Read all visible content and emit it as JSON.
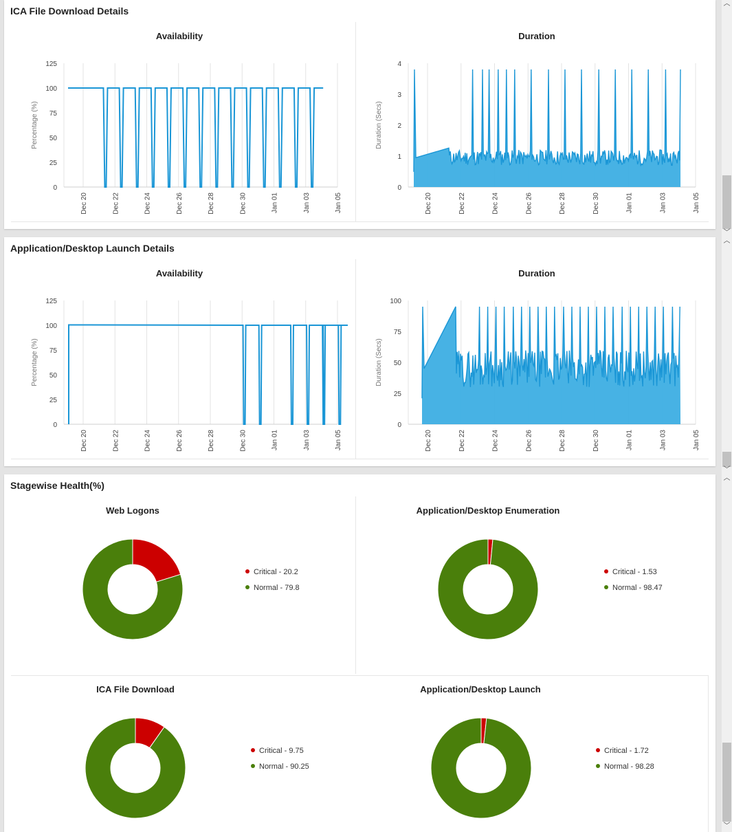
{
  "sections": {
    "ica": {
      "title": "ICA File Download Details"
    },
    "launch": {
      "title": "Application/Desktop Launch Details"
    },
    "stagewise": {
      "title": "Stagewise Health(%)"
    }
  },
  "colors": {
    "line": "#1a96d6",
    "area": "#3daee3",
    "critical": "#cc0000",
    "normal": "#4a7f0b"
  },
  "chart_data": [
    {
      "id": "ica_availability",
      "type": "line",
      "title": "Availability",
      "ylabel": "Percentage (%)",
      "ylim": [
        0,
        125
      ],
      "yticks": [
        "0",
        "25",
        "50",
        "75",
        "100",
        "125"
      ],
      "xticks": [
        "Dec 20",
        "Dec 22",
        "Dec 24",
        "Dec 26",
        "Dec 28",
        "Dec 30",
        "Jan 01",
        "Jan 03",
        "Jan 05"
      ],
      "drops": [
        "Dec 21.3",
        "Dec 22.2",
        "Dec 23.2",
        "Dec 24.2",
        "Dec 25.2",
        "Dec 26.2",
        "Dec 27.2",
        "Dec 28.2",
        "Dec 29.2",
        "Dec 30.2",
        "Dec 31.2",
        "Jan 01.2",
        "Jan 02.2",
        "Jan 03.2"
      ],
      "normal_value": 100,
      "drop_value": 0
    },
    {
      "id": "ica_duration",
      "type": "area",
      "title": "Duration",
      "ylabel": "Duration (Secs)",
      "ylim": [
        0,
        4
      ],
      "yticks": [
        "0",
        "1",
        "2",
        "3",
        "4"
      ],
      "xticks": [
        "Dec 20",
        "Dec 22",
        "Dec 24",
        "Dec 26",
        "Dec 28",
        "Dec 30",
        "Jan 01",
        "Jan 03",
        "Jan 05"
      ],
      "baseline_range": [
        0.7,
        1.2
      ],
      "spike_value": 3.8
    },
    {
      "id": "launch_availability",
      "type": "line",
      "title": "Availability",
      "ylabel": "Percentage (%)",
      "ylim": [
        0,
        125
      ],
      "yticks": [
        "0",
        "25",
        "50",
        "75",
        "100",
        "125"
      ],
      "xticks": [
        "Dec 20",
        "Dec 22",
        "Dec 24",
        "Dec 26",
        "Dec 28",
        "Dec 30",
        "Jan 01",
        "Jan 03",
        "Jan 05"
      ],
      "normal_value": 100,
      "drop_value": 0
    },
    {
      "id": "launch_duration",
      "type": "area",
      "title": "Duration",
      "ylabel": "Duration (Secs)",
      "ylim": [
        0,
        100
      ],
      "yticks": [
        "0",
        "25",
        "50",
        "75",
        "100"
      ],
      "xticks": [
        "Dec 20",
        "Dec 22",
        "Dec 24",
        "Dec 26",
        "Dec 28",
        "Dec 30",
        "Jan 01",
        "Jan 03",
        "Jan 05"
      ],
      "baseline_range": [
        30,
        60
      ],
      "spike_value": 95
    },
    {
      "id": "web_logons",
      "type": "pie",
      "title": "Web Logons",
      "slices": [
        {
          "label": "Critical - 20.2",
          "value": 20.2
        },
        {
          "label": "Normal - 79.8",
          "value": 79.8
        }
      ]
    },
    {
      "id": "enumeration",
      "type": "pie",
      "title": "Application/Desktop Enumeration",
      "slices": [
        {
          "label": "Critical - 1.53",
          "value": 1.53
        },
        {
          "label": "Normal - 98.47",
          "value": 98.47
        }
      ]
    },
    {
      "id": "ica_file_download",
      "type": "pie",
      "title": "ICA File Download",
      "slices": [
        {
          "label": "Critical - 9.75",
          "value": 9.75
        },
        {
          "label": "Normal - 90.25",
          "value": 90.25
        }
      ]
    },
    {
      "id": "desktop_launch",
      "type": "pie",
      "title": "Application/Desktop Launch",
      "slices": [
        {
          "label": "Critical - 1.72",
          "value": 1.72
        },
        {
          "label": "Normal - 98.28",
          "value": 98.28
        }
      ]
    }
  ]
}
